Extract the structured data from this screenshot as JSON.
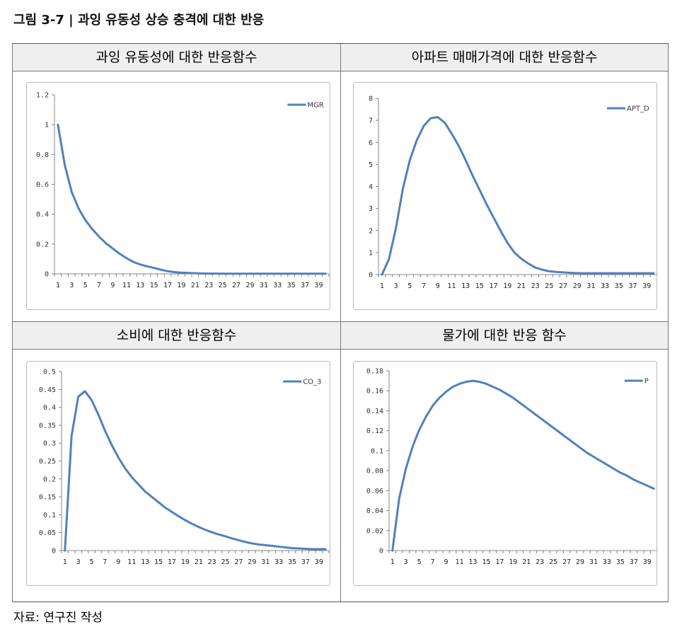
{
  "figure_title": "그림 3-7  |  과잉 유동성 상승 충격에 대한 반응",
  "source_note": "자료: 연구진 작성",
  "colors": {
    "line": "#4f81bd",
    "axis": "#868686",
    "panel_header_bg": "#efefef"
  },
  "chart_data": [
    {
      "panel_title": "과잉 유동성에 대한 반응함수",
      "type": "line",
      "x": [
        1,
        2,
        3,
        4,
        5,
        6,
        7,
        8,
        9,
        10,
        11,
        12,
        13,
        14,
        15,
        16,
        17,
        18,
        19,
        20,
        21,
        22,
        23,
        24,
        25,
        26,
        27,
        28,
        29,
        30,
        31,
        32,
        33,
        34,
        35,
        36,
        37,
        38,
        39,
        40
      ],
      "x_tick_labels": [
        "1",
        "3",
        "5",
        "7",
        "9",
        "11",
        "13",
        "15",
        "17",
        "19",
        "21",
        "23",
        "25",
        "27",
        "29",
        "31",
        "33",
        "35",
        "37",
        "39"
      ],
      "y_tick_labels": [
        "0",
        "0.2",
        "0.4",
        "0.6",
        "0.8",
        "1",
        "1.2"
      ],
      "ylim": [
        0,
        1.2
      ],
      "series": [
        {
          "name": "MGR",
          "values": [
            1.0,
            0.73,
            0.55,
            0.44,
            0.36,
            0.3,
            0.25,
            0.205,
            0.17,
            0.135,
            0.105,
            0.08,
            0.063,
            0.05,
            0.04,
            0.028,
            0.018,
            0.012,
            0.008,
            0.006,
            0.004,
            0.003,
            0.002,
            0.002,
            0.001,
            0.001,
            0.001,
            0.001,
            0.001,
            0.001,
            0.001,
            0.001,
            0.001,
            0.001,
            0.001,
            0.001,
            0.001,
            0.001,
            0.001,
            0.001
          ]
        }
      ],
      "legend": "top-right"
    },
    {
      "panel_title": "아파트 매매가격에 대한 반응함수",
      "type": "line",
      "x": [
        1,
        2,
        3,
        4,
        5,
        6,
        7,
        8,
        9,
        10,
        11,
        12,
        13,
        14,
        15,
        16,
        17,
        18,
        19,
        20,
        21,
        22,
        23,
        24,
        25,
        26,
        27,
        28,
        29,
        30,
        31,
        32,
        33,
        34,
        35,
        36,
        37,
        38,
        39,
        40
      ],
      "x_tick_labels": [
        "1",
        "3",
        "5",
        "7",
        "9",
        "11",
        "13",
        "15",
        "17",
        "19",
        "21",
        "23",
        "25",
        "27",
        "29",
        "31",
        "33",
        "35",
        "37",
        "39"
      ],
      "y_tick_labels": [
        "0",
        "1",
        "2",
        "3",
        "4",
        "5",
        "6",
        "7",
        "8"
      ],
      "ylim": [
        0,
        8
      ],
      "series": [
        {
          "name": "APT_D",
          "values": [
            0.0,
            0.7,
            2.1,
            3.9,
            5.2,
            6.1,
            6.75,
            7.1,
            7.15,
            6.9,
            6.4,
            5.85,
            5.2,
            4.5,
            3.85,
            3.2,
            2.6,
            2.0,
            1.45,
            1.0,
            0.72,
            0.5,
            0.32,
            0.22,
            0.15,
            0.12,
            0.1,
            0.08,
            0.07,
            0.06,
            0.06,
            0.06,
            0.06,
            0.06,
            0.06,
            0.06,
            0.06,
            0.06,
            0.06,
            0.06
          ]
        }
      ],
      "legend": "top-right"
    },
    {
      "panel_title": "소비에 대한 반응함수",
      "type": "line",
      "x": [
        1,
        2,
        3,
        4,
        5,
        6,
        7,
        8,
        9,
        10,
        11,
        12,
        13,
        14,
        15,
        16,
        17,
        18,
        19,
        20,
        21,
        22,
        23,
        24,
        25,
        26,
        27,
        28,
        29,
        30,
        31,
        32,
        33,
        34,
        35,
        36,
        37,
        38,
        39,
        40
      ],
      "x_tick_labels": [
        "1",
        "3",
        "5",
        "7",
        "9",
        "11",
        "13",
        "15",
        "17",
        "19",
        "21",
        "23",
        "25",
        "27",
        "29",
        "31",
        "33",
        "35",
        "37",
        "39"
      ],
      "y_tick_labels": [
        "0",
        "0.05",
        "0.1",
        "0.15",
        "0.2",
        "0.25",
        "0.3",
        "0.35",
        "0.4",
        "0.45",
        "0.5"
      ],
      "ylim": [
        0,
        0.5
      ],
      "series": [
        {
          "name": "CO_3",
          "values": [
            0.0,
            0.32,
            0.43,
            0.445,
            0.42,
            0.38,
            0.335,
            0.295,
            0.26,
            0.23,
            0.205,
            0.185,
            0.165,
            0.15,
            0.135,
            0.12,
            0.108,
            0.096,
            0.085,
            0.075,
            0.066,
            0.058,
            0.051,
            0.045,
            0.04,
            0.034,
            0.029,
            0.024,
            0.02,
            0.017,
            0.015,
            0.013,
            0.011,
            0.009,
            0.007,
            0.006,
            0.005,
            0.004,
            0.004,
            0.004
          ]
        }
      ],
      "legend": "top-right"
    },
    {
      "panel_title": "물가에 대한 반응 함수",
      "type": "line",
      "x": [
        1,
        2,
        3,
        4,
        5,
        6,
        7,
        8,
        9,
        10,
        11,
        12,
        13,
        14,
        15,
        16,
        17,
        18,
        19,
        20,
        21,
        22,
        23,
        24,
        25,
        26,
        27,
        28,
        29,
        30,
        31,
        32,
        33,
        34,
        35,
        36,
        37,
        38,
        39,
        40
      ],
      "x_tick_labels": [
        "1",
        "3",
        "5",
        "7",
        "9",
        "11",
        "13",
        "15",
        "17",
        "19",
        "21",
        "23",
        "25",
        "27",
        "29",
        "31",
        "33",
        "35",
        "37",
        "39"
      ],
      "y_tick_labels": [
        "0",
        "0.02",
        "0.04",
        "0.06",
        "0.08",
        "0.1",
        "0.12",
        "0.14",
        "0.16",
        "0.18"
      ],
      "ylim": [
        0,
        0.18
      ],
      "series": [
        {
          "name": "P",
          "values": [
            0.0,
            0.052,
            0.082,
            0.104,
            0.121,
            0.134,
            0.145,
            0.153,
            0.159,
            0.164,
            0.167,
            0.169,
            0.17,
            0.169,
            0.167,
            0.164,
            0.161,
            0.157,
            0.153,
            0.148,
            0.143,
            0.138,
            0.133,
            0.128,
            0.123,
            0.118,
            0.113,
            0.108,
            0.103,
            0.098,
            0.094,
            0.09,
            0.086,
            0.082,
            0.078,
            0.075,
            0.071,
            0.068,
            0.065,
            0.062
          ]
        }
      ],
      "legend": "top-right"
    }
  ]
}
